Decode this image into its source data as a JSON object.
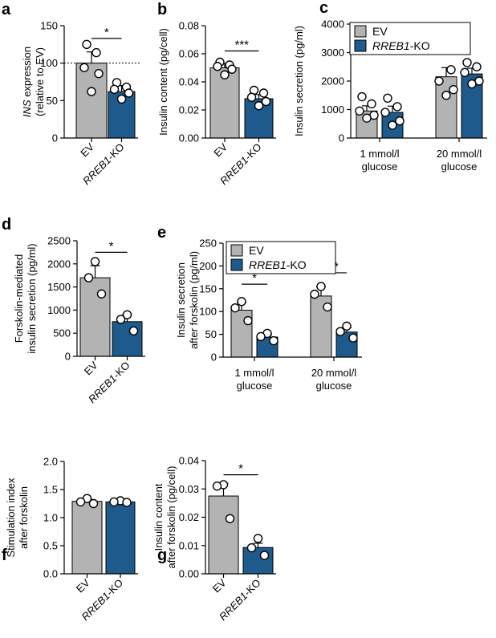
{
  "colors": {
    "ev": "#b3b3b3",
    "ko": "#1f5a8c",
    "point_fill": "#ffffff",
    "axis": "#000000"
  },
  "chart_data": [
    {
      "id": "a",
      "type": "bar",
      "panel_label": "a",
      "ylabel_lines": [
        "INS expression",
        "(relative to EV)"
      ],
      "ylim": [
        0,
        150
      ],
      "yticks": [
        "0",
        "50",
        "100",
        "150"
      ],
      "categories": [
        "EV",
        "RREB1-KO"
      ],
      "values": [
        100,
        62
      ],
      "errors": [
        15,
        8
      ],
      "points": [
        [
          125,
          114,
          94,
          86,
          62
        ],
        [
          74,
          68,
          65,
          60,
          52
        ]
      ],
      "reference_line": 100,
      "significance": [
        {
          "between": [
            0,
            1
          ],
          "y": 133,
          "label": "*"
        }
      ]
    },
    {
      "id": "b",
      "type": "bar",
      "panel_label": "b",
      "ylabel_lines": [
        "Insulin content (pg/cell)"
      ],
      "ylim": [
        0,
        0.08
      ],
      "yticks": [
        "0.00",
        "0.02",
        "0.04",
        "0.06",
        "0.08"
      ],
      "categories": [
        "EV",
        "RREB1-KO"
      ],
      "values": [
        0.05,
        0.028
      ],
      "errors": [
        0.003,
        0.003
      ],
      "points": [
        [
          0.054,
          0.052,
          0.051,
          0.049,
          0.045
        ],
        [
          0.034,
          0.032,
          0.029,
          0.026,
          0.023
        ]
      ],
      "significance": [
        {
          "between": [
            0,
            1
          ],
          "y": 0.062,
          "label": "***"
        }
      ]
    },
    {
      "id": "c",
      "type": "bar",
      "panel_label": "c",
      "ylabel_lines": [
        "Insulin secretion (pg/ml)"
      ],
      "ylim": [
        0,
        4000
      ],
      "yticks": [
        "0",
        "1000",
        "2000",
        "3000",
        "4000"
      ],
      "groups": [
        [
          "1 mmol/l",
          "glucose"
        ],
        [
          "20 mmol/l",
          "glucose"
        ]
      ],
      "series": [
        {
          "name": "EV",
          "values": [
            950,
            2150
          ],
          "errors": [
            180,
            320
          ],
          "points": [
            [
              1450,
              1200,
              950,
              800,
              700
            ],
            [
              3200,
              2400,
              2000,
              1700,
              1500
            ]
          ]
        },
        {
          "name": "RREB1-KO",
          "values": [
            900,
            2250
          ],
          "errors": [
            220,
            200
          ],
          "points": [
            [
              1400,
              1100,
              900,
              600,
              450
            ],
            [
              2650,
              2500,
              2300,
              2000,
              1900
            ]
          ]
        }
      ],
      "legend": {
        "items": [
          "EV",
          "-KO"
        ],
        "italic_prefix": [
          "",
          "RREB1"
        ]
      }
    },
    {
      "id": "d",
      "type": "bar",
      "panel_label": "d",
      "ylabel_lines": [
        "Forskolin-mediated",
        "insulin secretion (pg/ml)"
      ],
      "ylim": [
        0,
        2500
      ],
      "yticks": [
        "0",
        "500",
        "1000",
        "1500",
        "2000",
        "2500"
      ],
      "categories": [
        "EV",
        "RREB1-KO"
      ],
      "values": [
        1700,
        750
      ],
      "errors": [
        260,
        150
      ],
      "points": [
        [
          2050,
          1700,
          1350
        ],
        [
          900,
          800,
          550
        ]
      ],
      "significance": [
        {
          "between": [
            0,
            1
          ],
          "y": 2250,
          "label": "*"
        }
      ]
    },
    {
      "id": "e",
      "type": "bar",
      "panel_label": "e",
      "ylabel_lines": [
        "Insulin secretion",
        "after forskolin (pg/ml)"
      ],
      "ylim": [
        0,
        250
      ],
      "yticks": [
        "0",
        "50",
        "100",
        "150",
        "200",
        "250"
      ],
      "groups": [
        [
          "1 mmol/l",
          "glucose"
        ],
        [
          "20 mmol/l",
          "glucose"
        ]
      ],
      "series": [
        {
          "name": "EV",
          "values": [
            103,
            134
          ],
          "errors": [
            17,
            20
          ],
          "points": [
            [
              122,
              108,
              80
            ],
            [
              155,
              138,
              110
            ]
          ]
        },
        {
          "name": "RREB1-KO",
          "values": [
            44,
            55
          ],
          "errors": [
            5,
            10
          ],
          "points": [
            [
              52,
              45,
              36
            ],
            [
              68,
              56,
              42
            ]
          ]
        }
      ],
      "legend": {
        "items": [
          "EV",
          "-KO"
        ],
        "italic_prefix": [
          "",
          "RREB1"
        ]
      },
      "significance": [
        {
          "between": [
            0,
            1
          ],
          "group": 0,
          "y": 160,
          "label": "*"
        },
        {
          "between": [
            0,
            1
          ],
          "group": 1,
          "y": 185,
          "label": "**"
        }
      ]
    },
    {
      "id": "f",
      "type": "bar",
      "panel_label": "f",
      "ylabel_lines": [
        "Stimulation index",
        "after forskolin"
      ],
      "ylim": [
        0,
        2.0
      ],
      "yticks": [
        "0.0",
        "0.5",
        "1.0",
        "1.5",
        "2.0"
      ],
      "categories": [
        "EV",
        "RREB1-KO"
      ],
      "values": [
        1.29,
        1.28
      ],
      "errors": [
        0.04,
        0.02
      ],
      "points": [
        [
          1.34,
          1.28,
          1.25
        ],
        [
          1.3,
          1.28,
          1.27
        ]
      ]
    },
    {
      "id": "g",
      "type": "bar",
      "panel_label": "g",
      "ylabel_lines": [
        "Insulin content",
        "after forskolin (pg/cell)"
      ],
      "ylim": [
        0,
        0.04
      ],
      "yticks": [
        "0.00",
        "0.01",
        "0.02",
        "0.03",
        "0.04"
      ],
      "categories": [
        "EV",
        "RREB1-KO"
      ],
      "values": [
        0.0275,
        0.0093
      ],
      "errors": [
        0.0045,
        0.0015
      ],
      "points": [
        [
          0.0315,
          0.031,
          0.0195
        ],
        [
          0.0125,
          0.0092,
          0.0065
        ]
      ],
      "significance": [
        {
          "between": [
            0,
            1
          ],
          "y": 0.035,
          "label": "*"
        }
      ]
    }
  ]
}
